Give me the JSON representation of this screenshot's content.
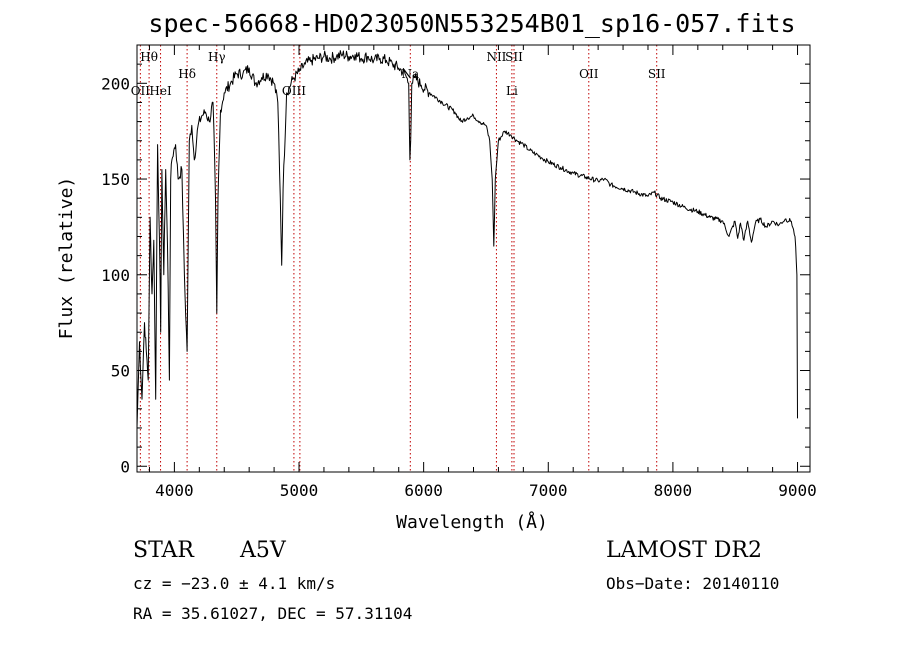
{
  "chart_data": {
    "type": "line",
    "title": "spec-56668-HD023050N553254B01_sp16-057.fits",
    "xlabel": "Wavelength (Å)",
    "ylabel": "Flux (relative)",
    "xlim": [
      3700,
      9100
    ],
    "ylim": [
      -3,
      220
    ],
    "x_ticks": [
      4000,
      5000,
      6000,
      7000,
      8000,
      9000
    ],
    "x_tick_labels": [
      "4000",
      "5000",
      "6000",
      "7000",
      "8000",
      "9000"
    ],
    "y_ticks": [
      0,
      50,
      100,
      150,
      200
    ],
    "y_tick_labels": [
      "0",
      "50",
      "100",
      "150",
      "200"
    ],
    "grid": false,
    "series": [
      {
        "x": [
          3700,
          3720,
          3740,
          3760,
          3775,
          3790,
          3805,
          3820,
          3835,
          3850,
          3865,
          3880,
          3890,
          3900,
          3915,
          3930,
          3945,
          3960,
          3970,
          3980,
          3995,
          4010,
          4030,
          4060,
          4080,
          4102,
          4120,
          4140,
          4160,
          4190,
          4220,
          4250,
          4280,
          4310,
          4330,
          4340,
          4350,
          4370,
          4400,
          4450,
          4500,
          4550,
          4600,
          4650,
          4700,
          4750,
          4800,
          4830,
          4850,
          4861,
          4872,
          4900,
          4950,
          5000,
          5050,
          5100,
          5150,
          5200,
          5250,
          5300,
          5350,
          5400,
          5450,
          5500,
          5550,
          5600,
          5650,
          5700,
          5750,
          5800,
          5850,
          5880,
          5890,
          5896,
          5905,
          5930,
          5980,
          6050,
          6150,
          6250,
          6300,
          6350,
          6400,
          6450,
          6500,
          6530,
          6550,
          6563,
          6575,
          6600,
          6650,
          6700,
          6750,
          6800,
          6850,
          6900,
          6950,
          7000,
          7100,
          7200,
          7300,
          7400,
          7450,
          7500,
          7600,
          7700,
          7800,
          7850,
          7900,
          8000,
          8100,
          8200,
          8300,
          8400,
          8450,
          8498,
          8520,
          8542,
          8570,
          8600,
          8630,
          8662,
          8700,
          8750,
          8800,
          8850,
          8900,
          8950,
          8980,
          8995,
          9000
        ],
        "y": [
          20,
          65,
          35,
          75,
          60,
          45,
          130,
          90,
          118,
          35,
          168,
          120,
          70,
          155,
          100,
          155,
          115,
          45,
          150,
          160,
          165,
          168,
          150,
          155,
          100,
          60,
          170,
          178,
          160,
          178,
          183,
          185,
          180,
          190,
          140,
          80,
          140,
          186,
          195,
          200,
          205,
          205,
          208,
          200,
          203,
          205,
          200,
          190,
          140,
          105,
          145,
          195,
          202,
          206,
          210,
          212,
          213,
          214,
          213,
          214,
          215,
          214,
          215,
          213,
          214,
          212,
          213,
          212,
          210,
          208,
          205,
          200,
          160,
          170,
          200,
          203,
          199,
          195,
          190,
          185,
          180,
          182,
          183,
          180,
          178,
          170,
          150,
          115,
          150,
          170,
          175,
          173,
          170,
          168,
          165,
          163,
          161,
          159,
          156,
          153,
          151,
          149,
          150,
          147,
          145,
          143,
          141,
          143,
          140,
          138,
          135,
          133,
          130,
          128,
          120,
          128,
          119,
          127,
          118,
          128,
          117,
          127,
          129,
          125,
          128,
          126,
          129,
          128,
          120,
          100,
          25
        ]
      }
    ],
    "line_markers": [
      {
        "label": "OII",
        "wavelength": 3727,
        "row": "low"
      },
      {
        "label": "Hθ",
        "wavelength": 3797,
        "row": "top"
      },
      {
        "label": "HeI",
        "wavelength": 3889,
        "row": "low"
      },
      {
        "label": "Hδ",
        "wavelength": 4102,
        "row": "mid"
      },
      {
        "label": "Hγ",
        "wavelength": 4340,
        "row": "top"
      },
      {
        "label": "OIII",
        "wavelength": 4959,
        "row": "low"
      },
      {
        "label": "OIII",
        "wavelength": 5007,
        "row": "none"
      },
      {
        "label": "Na",
        "wavelength": 5893,
        "row": "mid"
      },
      {
        "label": "NII",
        "wavelength": 6584,
        "row": "top"
      },
      {
        "label": "Li",
        "wavelength": 6708,
        "row": "low"
      },
      {
        "label": "SII",
        "wavelength": 6725,
        "row": "top"
      },
      {
        "label": "OII",
        "wavelength": 7325,
        "row": "mid"
      },
      {
        "label": "SII",
        "wavelength": 7870,
        "row": "mid"
      }
    ]
  },
  "info": {
    "class_label": "STAR",
    "subclass": "A5V",
    "survey": "LAMOST DR2",
    "velocity": "cz = −23.0 ± 4.1 km/s",
    "obs_date": "Obs−Date: 20140110",
    "coords": "RA =  35.61027, DEC =  57.31104"
  },
  "colors": {
    "spectrum": "#000000",
    "marker_line": "#c00000",
    "axis": "#000000"
  }
}
